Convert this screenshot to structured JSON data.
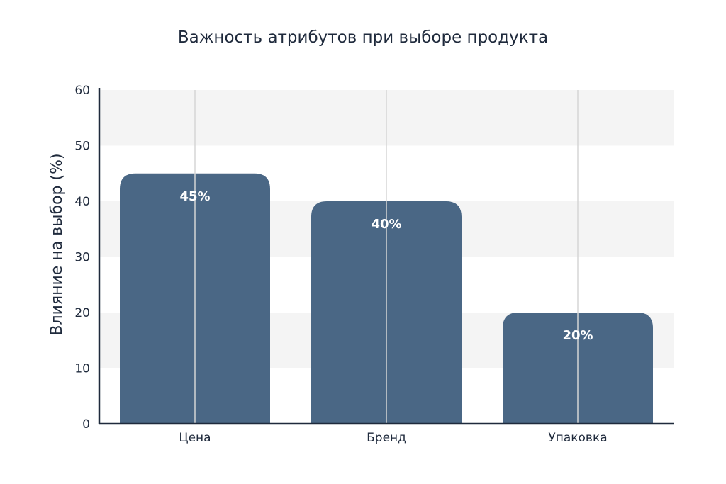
{
  "chart_data": {
    "type": "bar",
    "title": "Важность атрибутов при выборе продукта",
    "xlabel": "",
    "ylabel": "Влияние на выбор (%)",
    "categories": [
      "Цена",
      "Бренд",
      "Упаковка"
    ],
    "values": [
      45,
      40,
      20
    ],
    "data_labels": [
      "45%",
      "40%",
      "20%"
    ],
    "ylim": [
      0,
      60
    ],
    "yticks": [
      0,
      10,
      20,
      30,
      40,
      50,
      60
    ],
    "grid": "alternating horizontal bands",
    "legend": "none",
    "colors": {
      "bar": "#4a6785",
      "axis": "#1f2a3c",
      "band": "#f4f4f4",
      "gridline": "#d6d6d6"
    }
  }
}
